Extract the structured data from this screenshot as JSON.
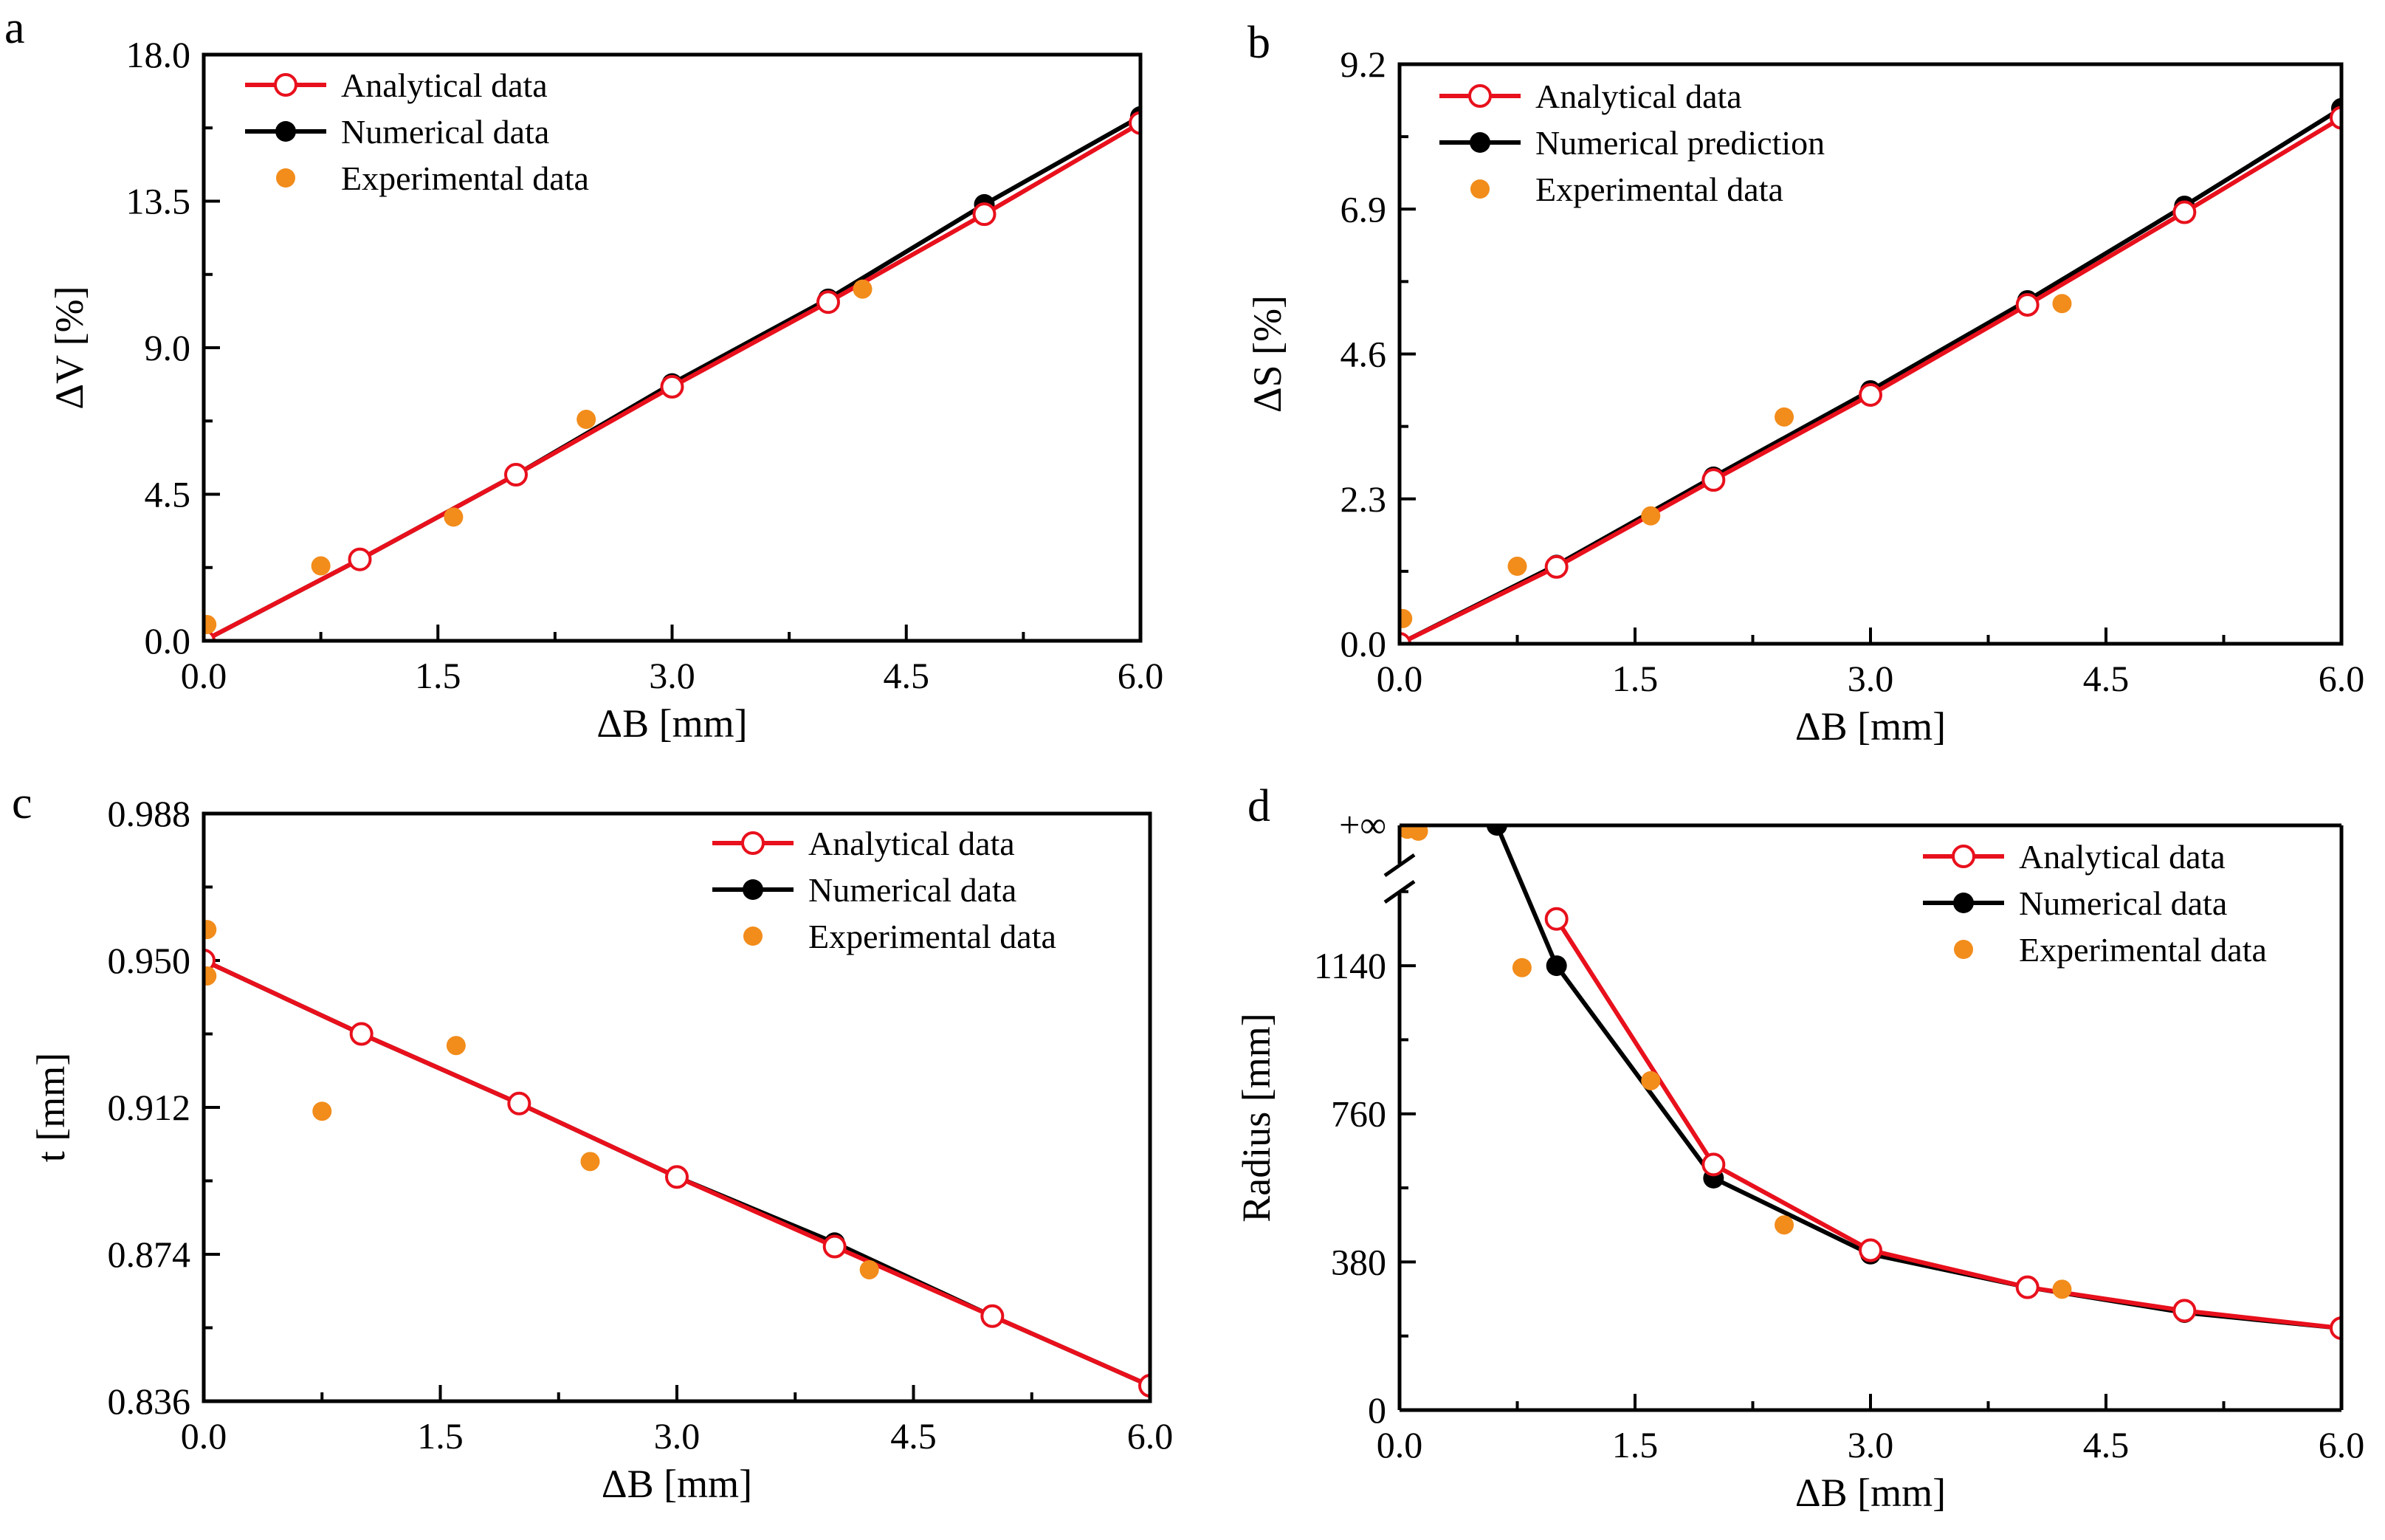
{
  "colors": {
    "analytical": "#e8101c",
    "numerical": "#000000",
    "experimental": "#f28c1b"
  },
  "chart_data": [
    {
      "type": "line",
      "panel_label": "a",
      "xlabel": "ΔB [mm]",
      "ylabel": "ΔV [%]",
      "xlim": [
        0,
        6
      ],
      "ylim": [
        0,
        18
      ],
      "xticks": [
        "0.0",
        "1.5",
        "3.0",
        "4.5",
        "6.0"
      ],
      "yticks": [
        "0.0",
        "4.5",
        "9.0",
        "13.5",
        "18.0"
      ],
      "legend_position": "top-left",
      "series": [
        {
          "name": "Analytical data",
          "style": "analytical",
          "x": [
            0,
            1,
            2,
            3,
            4,
            5,
            6
          ],
          "y": [
            0,
            2.5,
            5.1,
            7.8,
            10.4,
            13.1,
            15.9
          ]
        },
        {
          "name": "Numerical data",
          "style": "numerical",
          "x": [
            0,
            1,
            2,
            3,
            4,
            5,
            6
          ],
          "y": [
            0,
            2.5,
            5.1,
            7.9,
            10.5,
            13.4,
            16.1
          ]
        },
        {
          "name": "Experimental data",
          "style": "experimental",
          "x": [
            0.02,
            0.75,
            1.6,
            2.45,
            4.22
          ],
          "y": [
            0.5,
            2.3,
            3.8,
            6.8,
            10.8
          ]
        }
      ]
    },
    {
      "type": "line",
      "panel_label": "b",
      "xlabel": "ΔB [mm]",
      "ylabel": "ΔS [%]",
      "xlim": [
        0,
        6
      ],
      "ylim": [
        0,
        9.2
      ],
      "xticks": [
        "0.0",
        "1.5",
        "3.0",
        "4.5",
        "6.0"
      ],
      "yticks": [
        "0.0",
        "2.3",
        "4.6",
        "6.9",
        "9.2"
      ],
      "legend_position": "top-left",
      "series": [
        {
          "name": "Analytical data",
          "style": "analytical",
          "x": [
            0,
            1,
            2,
            3,
            4,
            5,
            6
          ],
          "y": [
            0,
            1.22,
            2.6,
            3.95,
            5.38,
            6.85,
            8.35
          ]
        },
        {
          "name": "Numerical prediction",
          "style": "numerical",
          "x": [
            0,
            1,
            2,
            3,
            4,
            5,
            6
          ],
          "y": [
            0,
            1.25,
            2.65,
            4.02,
            5.45,
            6.95,
            8.5
          ]
        },
        {
          "name": "Experimental data",
          "style": "experimental",
          "x": [
            0.02,
            0.75,
            1.6,
            2.45,
            4.22
          ],
          "y": [
            0.4,
            1.23,
            2.03,
            3.6,
            5.4
          ]
        }
      ]
    },
    {
      "type": "line",
      "panel_label": "c",
      "xlabel": "ΔB [mm]",
      "ylabel": "t [mm]",
      "xlim": [
        0,
        6
      ],
      "ylim": [
        0.836,
        0.988
      ],
      "xticks": [
        "0.0",
        "1.5",
        "3.0",
        "4.5",
        "6.0"
      ],
      "yticks": [
        "0.836",
        "0.874",
        "0.912",
        "0.950",
        "0.988"
      ],
      "legend_position": "top-right",
      "series": [
        {
          "name": "Analytical data",
          "style": "analytical",
          "x": [
            0,
            1,
            2,
            3,
            4,
            5,
            6
          ],
          "y": [
            0.95,
            0.931,
            0.913,
            0.894,
            0.876,
            0.858,
            0.84
          ]
        },
        {
          "name": "Numerical data",
          "style": "numerical",
          "x": [
            0,
            1,
            2,
            3,
            4,
            5,
            6
          ],
          "y": [
            0.95,
            0.931,
            0.913,
            0.894,
            0.877,
            0.858,
            0.84
          ]
        },
        {
          "name": "Experimental data",
          "style": "experimental",
          "x": [
            0.02,
            0.02,
            0.75,
            1.6,
            2.45,
            4.22
          ],
          "y": [
            0.958,
            0.946,
            0.911,
            0.928,
            0.898,
            0.87
          ]
        }
      ]
    },
    {
      "type": "line",
      "panel_label": "d",
      "xlabel": "ΔB [mm]",
      "ylabel": "Radius [mm]",
      "xlim": [
        0,
        6
      ],
      "ylim": [
        0,
        1500
      ],
      "xticks": [
        "0.0",
        "1.5",
        "3.0",
        "4.5",
        "6.0"
      ],
      "yticks": [
        "0",
        "380",
        "760",
        "1140"
      ],
      "top_tick_label": "+∞",
      "axis_break": true,
      "legend_position": "top-right",
      "series": [
        {
          "name": "Analytical data",
          "style": "analytical",
          "x": [
            1,
            2,
            3,
            4,
            5,
            6
          ],
          "y": [
            1260,
            630,
            410,
            315,
            255,
            210
          ]
        },
        {
          "name": "Numerical data",
          "style": "numerical",
          "x": [
            0.62,
            1,
            2,
            3,
            4,
            5,
            6
          ],
          "y": [
            1500,
            1140,
            595,
            400,
            315,
            250,
            210
          ]
        },
        {
          "name": "Experimental data",
          "style": "experimental",
          "x": [
            0.05,
            0.12,
            0.78,
            1.6,
            2.45,
            4.22
          ],
          "y": [
            1490,
            1485,
            1135,
            845,
            475,
            310
          ]
        }
      ]
    }
  ]
}
